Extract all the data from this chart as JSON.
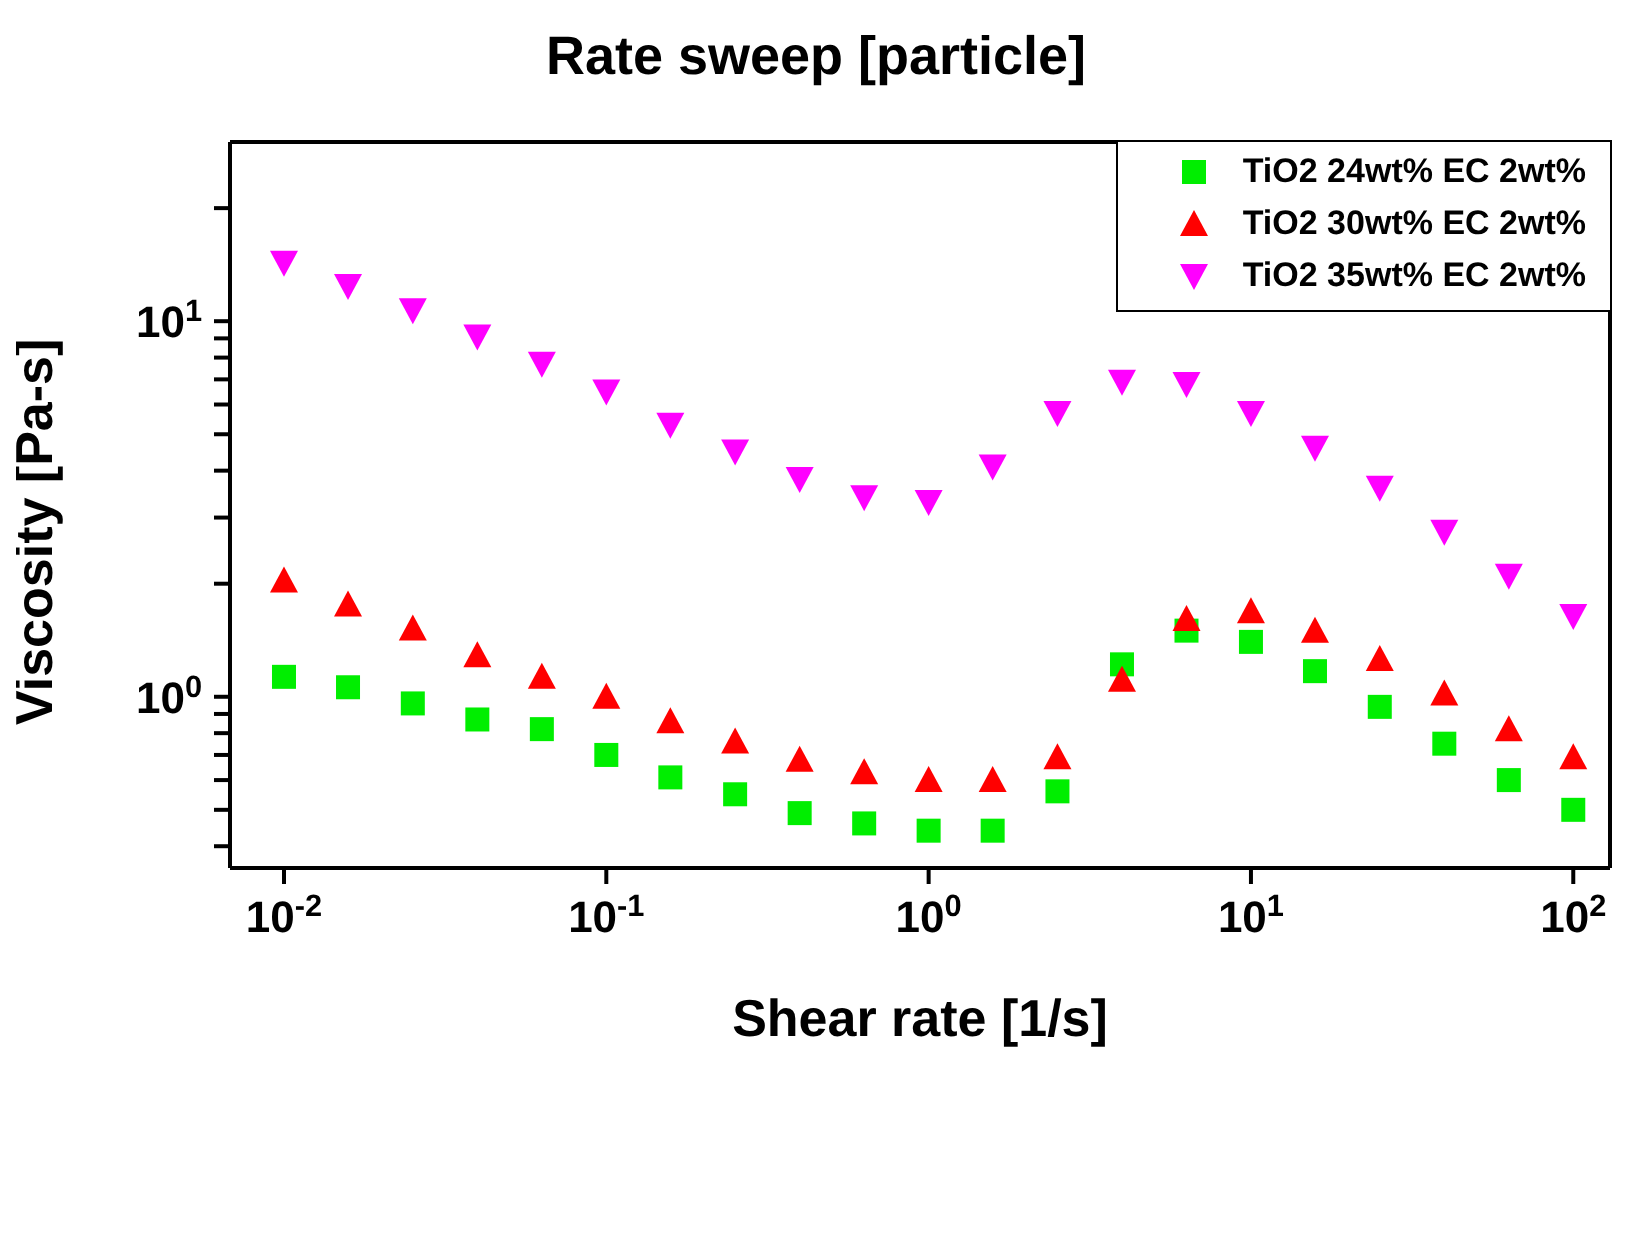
{
  "chart_data": {
    "type": "scatter",
    "title": "Rate sweep [particle]",
    "xlabel": "Shear rate [1/s]",
    "ylabel": "Viscosity [Pa-s]",
    "x": [
      0.01,
      0.0158,
      0.0251,
      0.0398,
      0.0631,
      0.1,
      0.158,
      0.251,
      0.398,
      0.631,
      1,
      1.58,
      2.51,
      3.98,
      6.31,
      10,
      15.8,
      25.1,
      39.8,
      63.1,
      100
    ],
    "series": [
      {
        "name": "TiO2 24wt% EC 2wt%",
        "color": "#00ee00",
        "marker": "square",
        "values": [
          1.13,
          1.06,
          0.96,
          0.87,
          0.82,
          0.7,
          0.61,
          0.55,
          0.49,
          0.46,
          0.44,
          0.44,
          0.56,
          1.22,
          1.5,
          1.4,
          1.17,
          0.94,
          0.75,
          0.6,
          0.5
        ]
      },
      {
        "name": "TiO2 30wt% EC 2wt%",
        "color": "#ff0000",
        "marker": "triangle",
        "values": [
          2.04,
          1.76,
          1.52,
          1.29,
          1.13,
          1.0,
          0.86,
          0.76,
          0.68,
          0.63,
          0.6,
          0.6,
          0.69,
          1.11,
          1.61,
          1.69,
          1.5,
          1.26,
          1.02,
          0.82,
          0.69
        ]
      },
      {
        "name": "TiO2 35wt% EC 2wt%",
        "color": "#ff00ff",
        "marker": "triangle-down",
        "values": [
          14.3,
          12.4,
          10.7,
          9.1,
          7.7,
          6.5,
          5.3,
          4.5,
          3.8,
          3.4,
          3.3,
          4.1,
          5.7,
          6.9,
          6.8,
          5.7,
          4.6,
          3.6,
          2.75,
          2.1,
          1.64
        ]
      }
    ],
    "log": "xy",
    "xlim": [
      0.0068,
      130
    ],
    "ylim": [
      0.35,
      30
    ],
    "xticks": [
      {
        "value": 0.01,
        "label": "10$^{-2}$"
      },
      {
        "value": 0.1,
        "label": "10$^{-1}$"
      },
      {
        "value": 1,
        "label": "10$^{0}$"
      },
      {
        "value": 10,
        "label": "10$^{1}$"
      },
      {
        "value": 100,
        "label": "10$^{2}$"
      }
    ],
    "yticks": [
      {
        "value": 0.4,
        "label": null
      },
      {
        "value": 0.5,
        "label": null
      },
      {
        "value": 0.6,
        "label": null
      },
      {
        "value": 0.7,
        "label": null
      },
      {
        "value": 0.8,
        "label": null
      },
      {
        "value": 0.9,
        "label": null
      },
      {
        "value": 1,
        "label": "10$^{0}$"
      },
      {
        "value": 2,
        "label": null
      },
      {
        "value": 3,
        "label": null
      },
      {
        "value": 4,
        "label": null
      },
      {
        "value": 5,
        "label": null
      },
      {
        "value": 6,
        "label": null
      },
      {
        "value": 7,
        "label": null
      },
      {
        "value": 8,
        "label": null
      },
      {
        "value": 9,
        "label": null
      },
      {
        "value": 10,
        "label": "10$^{1}$"
      },
      {
        "value": 20,
        "label": null
      }
    ],
    "grid": false,
    "legend": "top right"
  }
}
